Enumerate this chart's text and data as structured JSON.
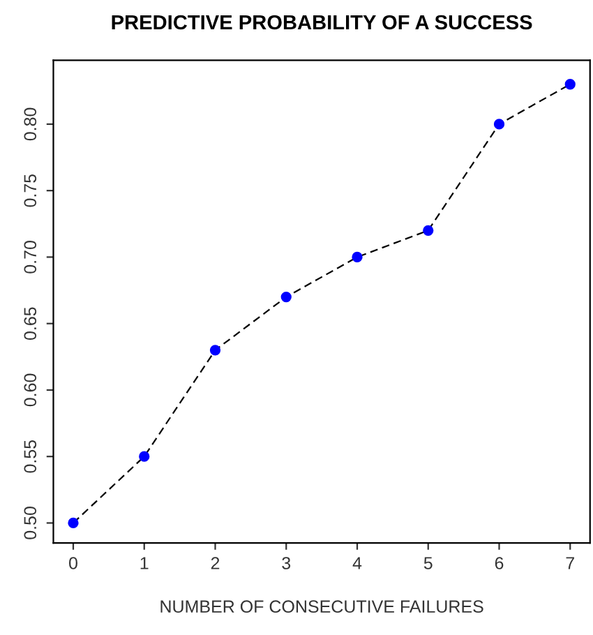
{
  "chart_data": {
    "type": "line",
    "title": "PREDICTIVE PROBABILITY OF A SUCCESS",
    "xlabel": "NUMBER OF CONSECUTIVE FAILURES",
    "x": [
      0,
      1,
      2,
      3,
      4,
      5,
      6,
      7
    ],
    "series": [
      {
        "color": "#0000ff",
        "values": [
          0.5,
          0.55,
          0.63,
          0.67,
          0.7,
          0.72,
          0.8,
          0.83
        ]
      }
    ],
    "marker": "circle",
    "line_style": "dashed",
    "grid": false,
    "legend": false,
    "xlim": [
      -0.28,
      7.28
    ],
    "xticks": [
      0,
      1,
      2,
      3,
      4,
      5,
      6,
      7
    ],
    "ylim": [
      0.485,
      0.848
    ],
    "yticks": [
      {
        "value": 0.5,
        "label": "0.50"
      },
      {
        "value": 0.55,
        "label": "0.55"
      },
      {
        "value": 0.6,
        "label": "0.60"
      },
      {
        "value": 0.65,
        "label": "0.65"
      },
      {
        "value": 0.7,
        "label": "0.70"
      },
      {
        "value": 0.75,
        "label": "0.75"
      },
      {
        "value": 0.8,
        "label": "0.80"
      }
    ]
  }
}
